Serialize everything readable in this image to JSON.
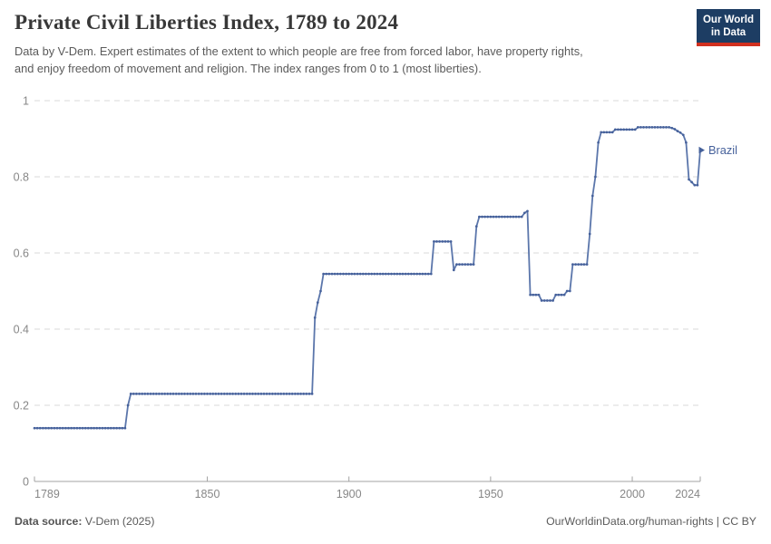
{
  "header": {
    "title": "Private Civil Liberties Index, 1789 to 2024",
    "subtitle_line1": "Data by V-Dem. Expert estimates of the extent to which people are free from forced labor, have property rights,",
    "subtitle_line2": "and enjoy freedom of movement and religion. The index ranges from 0 to 1 (most liberties).",
    "logo": {
      "line1": "Our World",
      "line2": "in Data",
      "bg_color": "#1d3d63",
      "accent_color": "#d1301f"
    }
  },
  "chart_data": {
    "type": "line",
    "title": "Private Civil Liberties Index, 1789 to 2024",
    "xlabel": "",
    "ylabel": "",
    "x_range": [
      1789,
      2024
    ],
    "y_range": [
      0,
      1
    ],
    "x_ticks": [
      1789,
      1850,
      1900,
      1950,
      2000,
      2024
    ],
    "y_ticks": [
      0,
      0.2,
      0.4,
      0.6,
      0.8,
      1
    ],
    "y_tick_labels": [
      "0",
      "0.2",
      "0.4",
      "0.6",
      "0.8",
      "1"
    ],
    "grid": "horizontal-dashed",
    "legend_position": "end-of-line",
    "series": [
      {
        "name": "Brazil",
        "end_label": "Brazil",
        "color": "#46619B",
        "line_color": "#5B76AB",
        "note": "Annual step data: each [year, value] breakpoint holds until the next breakpoint year.",
        "breakpoints": [
          [
            1789,
            0.14
          ],
          [
            1822,
            0.2
          ],
          [
            1823,
            0.23
          ],
          [
            1888,
            0.43
          ],
          [
            1889,
            0.47
          ],
          [
            1890,
            0.5
          ],
          [
            1891,
            0.545
          ],
          [
            1930,
            0.63
          ],
          [
            1937,
            0.555
          ],
          [
            1938,
            0.57
          ],
          [
            1945,
            0.67
          ],
          [
            1946,
            0.695
          ],
          [
            1962,
            0.705
          ],
          [
            1963,
            0.71
          ],
          [
            1964,
            0.49
          ],
          [
            1968,
            0.475
          ],
          [
            1973,
            0.49
          ],
          [
            1977,
            0.5
          ],
          [
            1979,
            0.57
          ],
          [
            1985,
            0.65
          ],
          [
            1986,
            0.75
          ],
          [
            1987,
            0.8
          ],
          [
            1988,
            0.89
          ],
          [
            1989,
            0.917
          ],
          [
            1994,
            0.924
          ],
          [
            2002,
            0.93
          ],
          [
            2014,
            0.928
          ],
          [
            2015,
            0.925
          ],
          [
            2016,
            0.92
          ],
          [
            2017,
            0.916
          ],
          [
            2018,
            0.91
          ],
          [
            2019,
            0.89
          ],
          [
            2020,
            0.793
          ],
          [
            2021,
            0.786
          ],
          [
            2022,
            0.778
          ],
          [
            2024,
            0.87
          ]
        ]
      }
    ]
  },
  "footer": {
    "source_label": "Data source:",
    "source_value": " V-Dem (2025)",
    "link": "OurWorldinData.org/human-rights",
    "separator": " | ",
    "license": "CC BY"
  },
  "colors": {
    "axis": "#a3a3a3",
    "gridline": "#dadada",
    "tick_label": "#878787",
    "background": "#ffffff"
  }
}
